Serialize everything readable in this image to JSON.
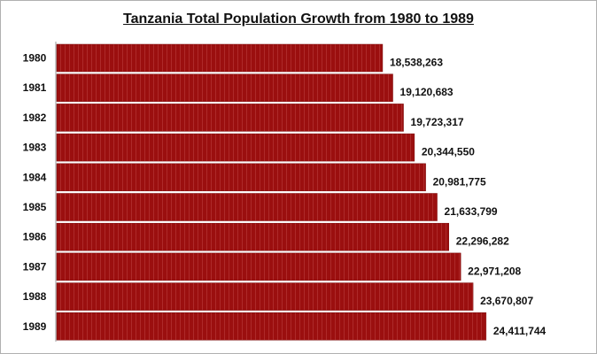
{
  "chart_data": {
    "type": "bar",
    "orientation": "horizontal",
    "title": "Tanzania Total Population Growth from 1980 to 1989",
    "categories": [
      "1980",
      "1981",
      "1982",
      "1983",
      "1984",
      "1985",
      "1986",
      "1987",
      "1988",
      "1989"
    ],
    "values": [
      18538263,
      19120683,
      19723317,
      20344550,
      20981775,
      21633799,
      22296282,
      22971208,
      23670807,
      24411744
    ],
    "value_labels": [
      "18,538,263",
      "19,120,683",
      "19,723,317",
      "20,344,550",
      "20,981,775",
      "21,633,799",
      "22,296,282",
      "22,971,208",
      "23,670,807",
      "24,411,744"
    ],
    "xlim": [
      0,
      30500000
    ],
    "grid": false,
    "bar_color": "#9b0f0f",
    "xlabel": "",
    "ylabel": ""
  }
}
